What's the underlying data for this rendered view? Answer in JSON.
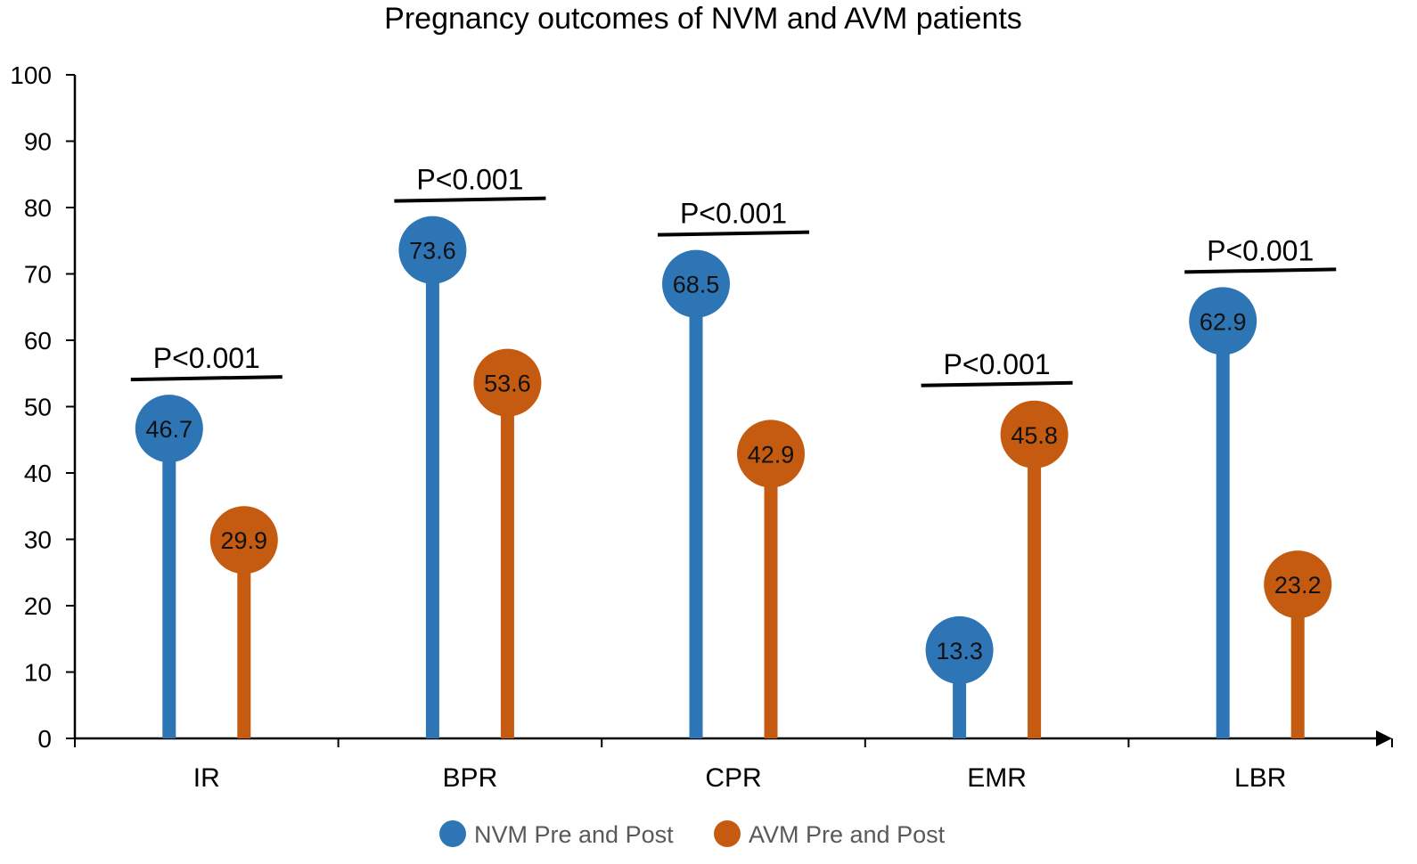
{
  "chart_data": {
    "type": "lollipop",
    "title": "Pregnancy outcomes of NVM and AVM patients",
    "xlabel": "",
    "ylabel": "",
    "ylim": [
      0,
      100
    ],
    "yticks": [
      0,
      10,
      20,
      30,
      40,
      50,
      60,
      70,
      80,
      90,
      100
    ],
    "categories": [
      "IR",
      "BPR",
      "CPR",
      "EMR",
      "LBR"
    ],
    "series": [
      {
        "name": "NVM Pre and Post",
        "color": "#2E75B6",
        "values": [
          46.7,
          73.6,
          68.5,
          13.3,
          62.9
        ]
      },
      {
        "name": "AVM Pre and Post",
        "color": "#C55A11",
        "values": [
          29.9,
          53.6,
          42.9,
          45.8,
          23.2
        ]
      }
    ],
    "annotations": [
      {
        "category": "IR",
        "text": "P<0.001"
      },
      {
        "category": "BPR",
        "text": "P<0.001"
      },
      {
        "category": "CPR",
        "text": "P<0.001"
      },
      {
        "category": "EMR",
        "text": "P<0.001"
      },
      {
        "category": "LBR",
        "text": "P<0.001"
      }
    ],
    "legend_position": "bottom"
  }
}
